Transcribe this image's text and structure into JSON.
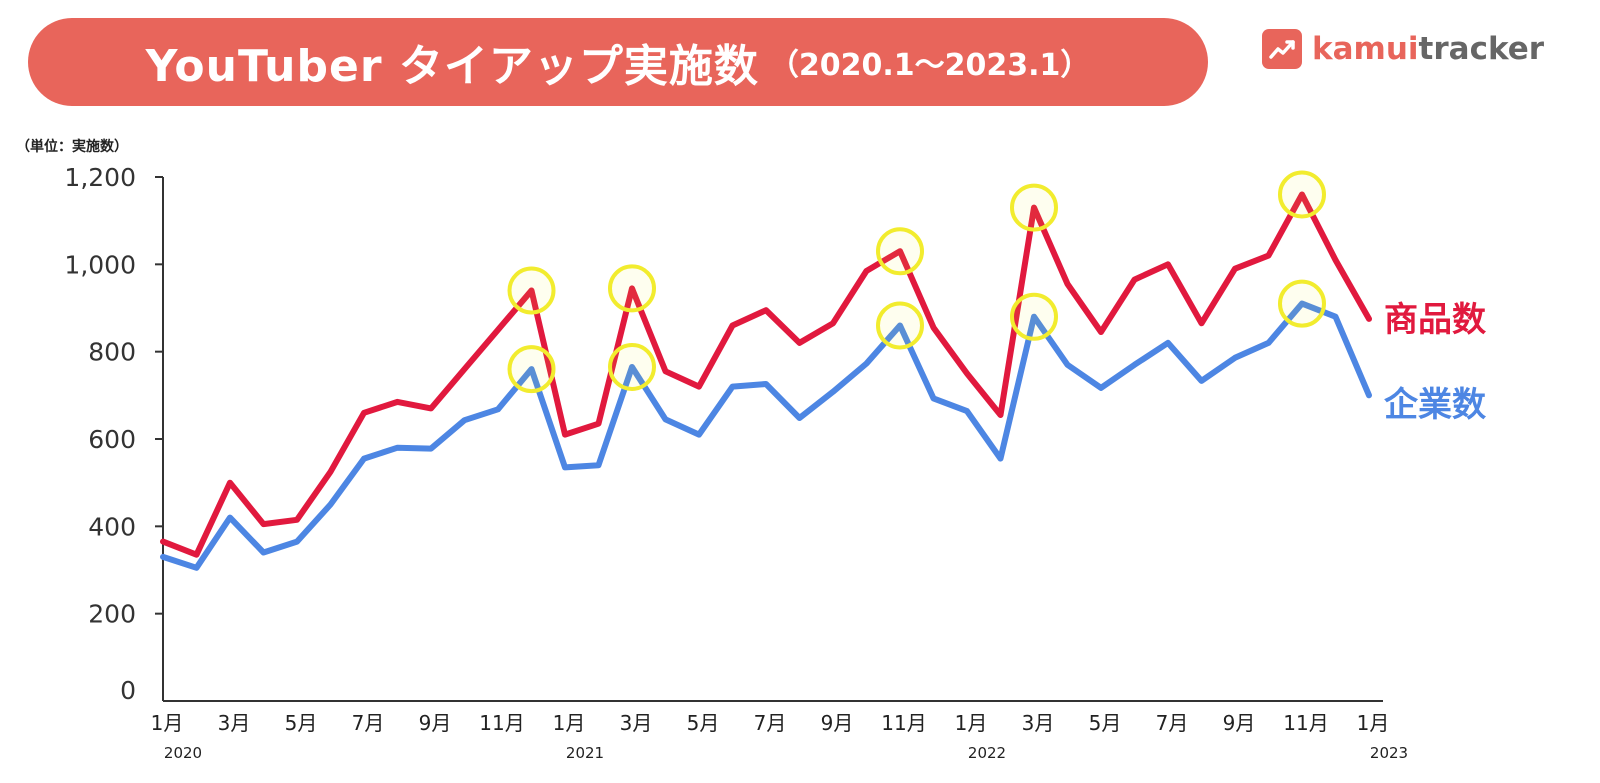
{
  "header": {
    "title": "YouTuber タイアップ実施数",
    "period": "（2020.1～2023.1）"
  },
  "brand": {
    "part1": "kamui",
    "part2": "tracker",
    "icon": "trend-chart-icon"
  },
  "unit_label": "（単位：実施数）",
  "colors": {
    "banner": "#e8655b",
    "product_line": "#e1193e",
    "company_line": "#4d86e3",
    "highlight": "#f2ec2e",
    "axis": "#333333"
  },
  "chart_data": {
    "type": "line",
    "title": "YouTuber タイアップ実施数（2020.1～2023.1）",
    "ylabel": "（単位：実施数）",
    "ylim": [
      0,
      1200
    ],
    "yticks": [
      0,
      200,
      400,
      600,
      800,
      "1,000",
      "1,200"
    ],
    "ytick_values": [
      0,
      200,
      400,
      600,
      800,
      1000,
      1200
    ],
    "x_tick_labels": [
      {
        "index": 0,
        "label": "1月"
      },
      {
        "index": 2,
        "label": "3月"
      },
      {
        "index": 4,
        "label": "5月"
      },
      {
        "index": 6,
        "label": "7月"
      },
      {
        "index": 8,
        "label": "9月"
      },
      {
        "index": 10,
        "label": "11月"
      },
      {
        "index": 12,
        "label": "1月"
      },
      {
        "index": 14,
        "label": "3月"
      },
      {
        "index": 16,
        "label": "5月"
      },
      {
        "index": 18,
        "label": "7月"
      },
      {
        "index": 20,
        "label": "9月"
      },
      {
        "index": 22,
        "label": "11月"
      },
      {
        "index": 24,
        "label": "1月"
      },
      {
        "index": 26,
        "label": "3月"
      },
      {
        "index": 28,
        "label": "5月"
      },
      {
        "index": 30,
        "label": "7月"
      },
      {
        "index": 32,
        "label": "9月"
      },
      {
        "index": 34,
        "label": "11月"
      },
      {
        "index": 36,
        "label": "1月"
      }
    ],
    "year_labels": [
      {
        "index": 0,
        "label": "2020"
      },
      {
        "index": 12,
        "label": "2021"
      },
      {
        "index": 24,
        "label": "2022"
      },
      {
        "index": 36,
        "label": "2023"
      }
    ],
    "series": [
      {
        "name": "商品数",
        "values": [
          365,
          335,
          500,
          405,
          415,
          525,
          660,
          685,
          670,
          760,
          850,
          940,
          610,
          635,
          945,
          755,
          720,
          860,
          895,
          820,
          865,
          985,
          1030,
          855,
          750,
          655,
          1130,
          955,
          845,
          965,
          1000,
          865,
          990,
          1020,
          1160,
          1010,
          875
        ]
      },
      {
        "name": "企業数",
        "values": [
          330,
          305,
          420,
          340,
          365,
          450,
          555,
          580,
          578,
          643,
          668,
          760,
          535,
          540,
          765,
          645,
          610,
          720,
          726,
          648,
          708,
          773,
          860,
          693,
          664,
          555,
          880,
          770,
          717,
          770,
          820,
          733,
          786,
          820,
          910,
          880,
          700
        ]
      }
    ],
    "highlights": [
      {
        "series": 0,
        "index": 11
      },
      {
        "series": 1,
        "index": 11
      },
      {
        "series": 0,
        "index": 14
      },
      {
        "series": 1,
        "index": 14
      },
      {
        "series": 0,
        "index": 22
      },
      {
        "series": 1,
        "index": 22
      },
      {
        "series": 0,
        "index": 26
      },
      {
        "series": 1,
        "index": 26
      },
      {
        "series": 0,
        "index": 34
      },
      {
        "series": 1,
        "index": 34
      }
    ]
  }
}
